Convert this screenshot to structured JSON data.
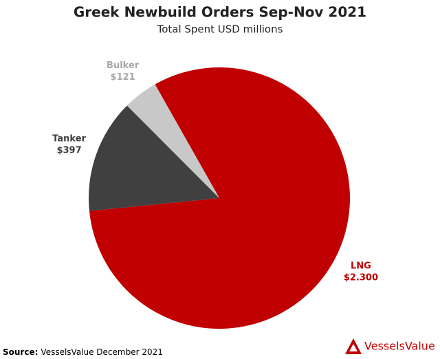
{
  "chart_data": {
    "type": "pie",
    "title": "Greek Newbuild Orders Sep-Nov 2021",
    "subtitle": "Total Spent USD millions",
    "categories": [
      "LNG",
      "Tanker",
      "Bulker"
    ],
    "values": [
      2300,
      397,
      121
    ],
    "value_labels": [
      "$2.300",
      "$397",
      "$121"
    ],
    "colors": [
      "#c00000",
      "#404040",
      "#c8c8c8"
    ],
    "source_label": "Source:",
    "source": "VesselsValue December 2021",
    "logo": "VesselsValue"
  }
}
